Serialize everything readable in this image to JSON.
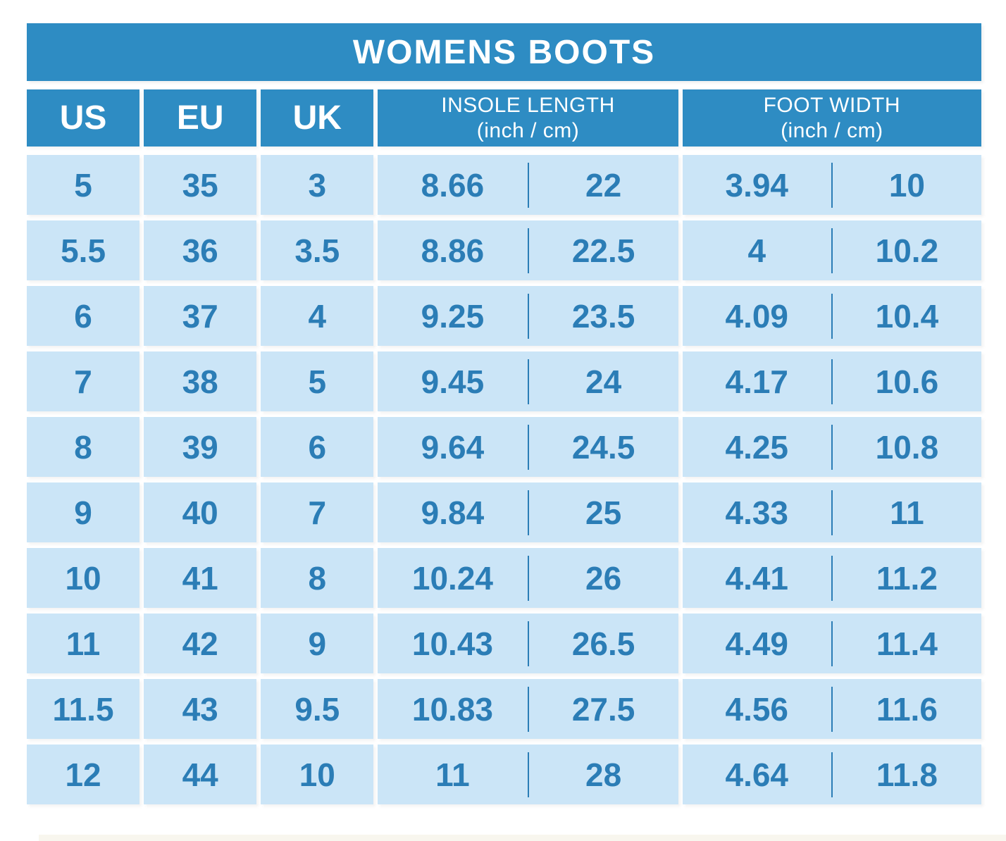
{
  "title": "WOMENS BOOTS",
  "colors": {
    "header_blue": "#2e8cc3",
    "cell_blue": "#cbe5f7",
    "text_blue": "#2b7db6",
    "title_text": "#ffffff"
  },
  "columns": [
    {
      "label": "US"
    },
    {
      "label": "EU"
    },
    {
      "label": "UK"
    },
    {
      "label": "INSOLE LENGTH",
      "sub": "(inch / cm)"
    },
    {
      "label": "FOOT WIDTH",
      "sub": "(inch / cm)"
    }
  ],
  "rows": [
    {
      "us": "5",
      "eu": "35",
      "uk": "3",
      "insole_in": "8.66",
      "insole_cm": "22",
      "width_in": "3.94",
      "width_cm": "10"
    },
    {
      "us": "5.5",
      "eu": "36",
      "uk": "3.5",
      "insole_in": "8.86",
      "insole_cm": "22.5",
      "width_in": "4",
      "width_cm": "10.2"
    },
    {
      "us": "6",
      "eu": "37",
      "uk": "4",
      "insole_in": "9.25",
      "insole_cm": "23.5",
      "width_in": "4.09",
      "width_cm": "10.4"
    },
    {
      "us": "7",
      "eu": "38",
      "uk": "5",
      "insole_in": "9.45",
      "insole_cm": "24",
      "width_in": "4.17",
      "width_cm": "10.6"
    },
    {
      "us": "8",
      "eu": "39",
      "uk": "6",
      "insole_in": "9.64",
      "insole_cm": "24.5",
      "width_in": "4.25",
      "width_cm": "10.8"
    },
    {
      "us": "9",
      "eu": "40",
      "uk": "7",
      "insole_in": "9.84",
      "insole_cm": "25",
      "width_in": "4.33",
      "width_cm": "11"
    },
    {
      "us": "10",
      "eu": "41",
      "uk": "8",
      "insole_in": "10.24",
      "insole_cm": "26",
      "width_in": "4.41",
      "width_cm": "11.2"
    },
    {
      "us": "11",
      "eu": "42",
      "uk": "9",
      "insole_in": "10.43",
      "insole_cm": "26.5",
      "width_in": "4.49",
      "width_cm": "11.4"
    },
    {
      "us": "11.5",
      "eu": "43",
      "uk": "9.5",
      "insole_in": "10.83",
      "insole_cm": "27.5",
      "width_in": "4.56",
      "width_cm": "11.6"
    },
    {
      "us": "12",
      "eu": "44",
      "uk": "10",
      "insole_in": "11",
      "insole_cm": "28",
      "width_in": "4.64",
      "width_cm": "11.8"
    }
  ],
  "chart_data": {
    "type": "table",
    "title": "WOMENS BOOTS",
    "columns": [
      "US",
      "EU",
      "UK",
      "INSOLE LENGTH (inch / cm)",
      "FOOT WIDTH (inch / cm)"
    ],
    "rows": [
      [
        "5",
        "35",
        "3",
        "8.66 / 22",
        "3.94 / 10"
      ],
      [
        "5.5",
        "36",
        "3.5",
        "8.86 / 22.5",
        "4 / 10.2"
      ],
      [
        "6",
        "37",
        "4",
        "9.25 / 23.5",
        "4.09 / 10.4"
      ],
      [
        "7",
        "38",
        "5",
        "9.45 / 24",
        "4.17 / 10.6"
      ],
      [
        "8",
        "39",
        "6",
        "9.64 / 24.5",
        "4.25 / 10.8"
      ],
      [
        "9",
        "40",
        "7",
        "9.84 / 25",
        "4.33 / 11"
      ],
      [
        "10",
        "41",
        "8",
        "10.24 / 26",
        "4.41 / 11.2"
      ],
      [
        "11",
        "42",
        "9",
        "10.43 / 26.5",
        "4.49 / 11.4"
      ],
      [
        "11.5",
        "43",
        "9.5",
        "10.83 / 27.5",
        "4.56 / 11.6"
      ],
      [
        "12",
        "44",
        "10",
        "11 / 28",
        "4.64 / 11.8"
      ]
    ]
  }
}
